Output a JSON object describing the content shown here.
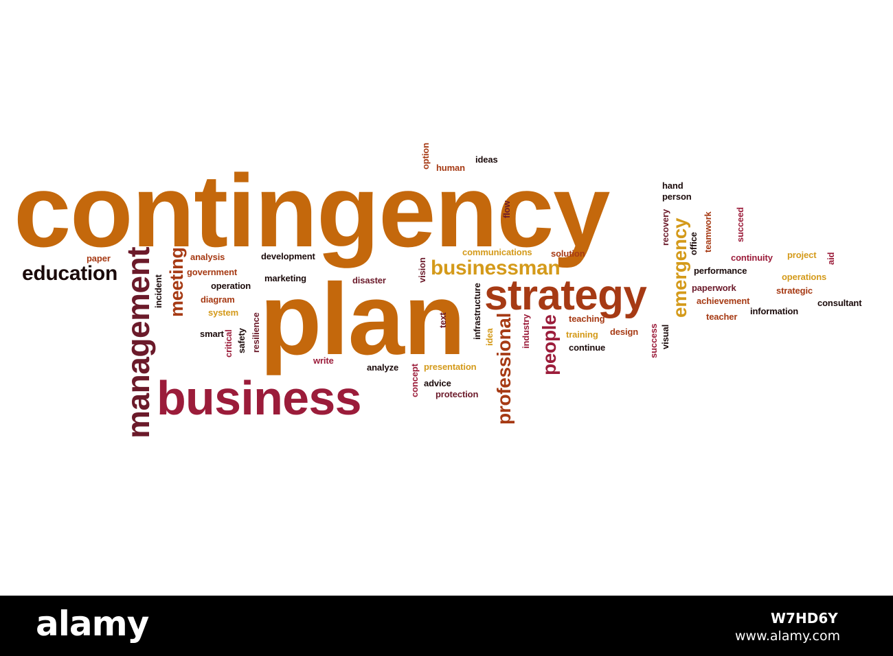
{
  "colors": {
    "orange": "#c4680c",
    "gold": "#d49a1a",
    "red_brown": "#a63a14",
    "dark_red": "#9b1c3a",
    "maroon": "#6b1a2a",
    "black": "#1a0a0a",
    "footer_bg": "#000000",
    "footer_text": "#ffffff"
  },
  "words": [
    {
      "text": "contingency",
      "color": "orange"
    },
    {
      "text": "plan",
      "color": "orange"
    },
    {
      "text": "strategy",
      "color": "red_brown"
    },
    {
      "text": "business",
      "color": "dark_red"
    },
    {
      "text": "management",
      "color": "maroon"
    },
    {
      "text": "education",
      "color": "black"
    },
    {
      "text": "businessman",
      "color": "gold"
    },
    {
      "text": "professional",
      "color": "red_brown"
    },
    {
      "text": "emergency",
      "color": "gold"
    },
    {
      "text": "people",
      "color": "dark_red"
    },
    {
      "text": "meeting",
      "color": "red_brown"
    },
    {
      "text": "paper",
      "color": "red_brown"
    },
    {
      "text": "analysis",
      "color": "red_brown"
    },
    {
      "text": "development",
      "color": "black"
    },
    {
      "text": "government",
      "color": "red_brown"
    },
    {
      "text": "operation",
      "color": "black"
    },
    {
      "text": "marketing",
      "color": "black"
    },
    {
      "text": "disaster",
      "color": "maroon"
    },
    {
      "text": "diagram",
      "color": "red_brown"
    },
    {
      "text": "system",
      "color": "gold"
    },
    {
      "text": "smart",
      "color": "black"
    },
    {
      "text": "incident",
      "color": "black"
    },
    {
      "text": "critical",
      "color": "dark_red"
    },
    {
      "text": "safety",
      "color": "black"
    },
    {
      "text": "resilience",
      "color": "maroon"
    },
    {
      "text": "write",
      "color": "dark_red"
    },
    {
      "text": "analyze",
      "color": "black"
    },
    {
      "text": "concept",
      "color": "dark_red"
    },
    {
      "text": "presentation",
      "color": "gold"
    },
    {
      "text": "advice",
      "color": "black"
    },
    {
      "text": "protection",
      "color": "maroon"
    },
    {
      "text": "vision",
      "color": "maroon"
    },
    {
      "text": "text",
      "color": "maroon"
    },
    {
      "text": "infrastructure",
      "color": "black"
    },
    {
      "text": "idea",
      "color": "gold"
    },
    {
      "text": "industry",
      "color": "dark_red"
    },
    {
      "text": "option",
      "color": "red_brown"
    },
    {
      "text": "human",
      "color": "red_brown"
    },
    {
      "text": "ideas",
      "color": "black"
    },
    {
      "text": "flow",
      "color": "maroon"
    },
    {
      "text": "communications",
      "color": "gold"
    },
    {
      "text": "solution",
      "color": "red_brown"
    },
    {
      "text": "teaching",
      "color": "red_brown"
    },
    {
      "text": "training",
      "color": "gold"
    },
    {
      "text": "design",
      "color": "red_brown"
    },
    {
      "text": "continue",
      "color": "black"
    },
    {
      "text": "success",
      "color": "dark_red"
    },
    {
      "text": "visual",
      "color": "black"
    },
    {
      "text": "hand",
      "color": "black"
    },
    {
      "text": "person",
      "color": "black"
    },
    {
      "text": "recovery",
      "color": "maroon"
    },
    {
      "text": "office",
      "color": "black"
    },
    {
      "text": "teamwork",
      "color": "red_brown"
    },
    {
      "text": "succeed",
      "color": "dark_red"
    },
    {
      "text": "continuity",
      "color": "dark_red"
    },
    {
      "text": "project",
      "color": "gold"
    },
    {
      "text": "aid",
      "color": "dark_red"
    },
    {
      "text": "performance",
      "color": "black"
    },
    {
      "text": "operations",
      "color": "gold"
    },
    {
      "text": "paperwork",
      "color": "maroon"
    },
    {
      "text": "strategic",
      "color": "red_brown"
    },
    {
      "text": "achievement",
      "color": "red_brown"
    },
    {
      "text": "consultant",
      "color": "black"
    },
    {
      "text": "teacher",
      "color": "red_brown"
    },
    {
      "text": "information",
      "color": "black"
    }
  ],
  "footer": {
    "logo": "alamy",
    "stock_id": "W7HD6Y",
    "url": "www.alamy.com"
  }
}
